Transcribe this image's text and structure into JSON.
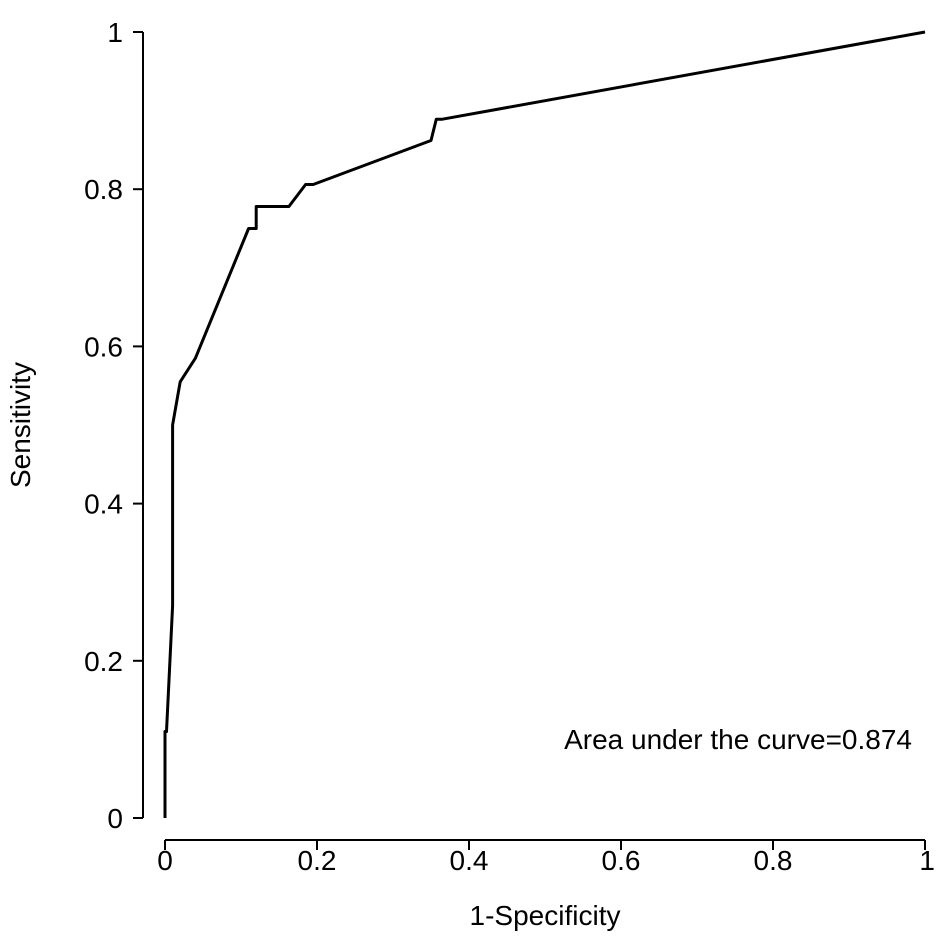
{
  "chart_data": {
    "type": "line",
    "title": "",
    "xlabel": "1-Specificity",
    "ylabel": "Sensitivity",
    "xlim": [
      0,
      1
    ],
    "ylim": [
      0,
      1
    ],
    "x_ticks": [
      0,
      0.2,
      0.4,
      0.6,
      0.8,
      1
    ],
    "x_tick_labels": [
      "0",
      "0.2",
      "0.4",
      "0.6",
      "0.8",
      "1"
    ],
    "y_ticks": [
      0,
      0.2,
      0.4,
      0.6,
      0.8,
      1
    ],
    "y_tick_labels": [
      "0",
      "0.2",
      "0.4",
      "0.6",
      "0.8",
      "1"
    ],
    "grid": false,
    "annotation": "Area under the curve=0.874",
    "series": [
      {
        "x": [
          0,
          0,
          0.002,
          0.01,
          0.01,
          0.02,
          0.04,
          0.11,
          0.12,
          0.12,
          0.163,
          0.185,
          0.195,
          0.35,
          0.357,
          0.365,
          1
        ],
        "y": [
          0,
          0.11,
          0.11,
          0.27,
          0.5,
          0.555,
          0.585,
          0.75,
          0.75,
          0.778,
          0.778,
          0.806,
          0.806,
          0.862,
          0.889,
          0.889,
          1
        ]
      }
    ],
    "line_color": "#000000"
  }
}
